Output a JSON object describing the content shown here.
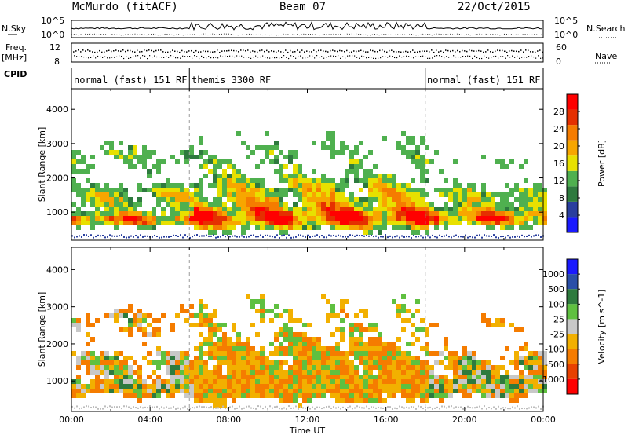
{
  "header": {
    "station": "McMurdo (fitACF)",
    "beam": "Beam 07",
    "date": "22/Oct/2015"
  },
  "strip_labels": {
    "nsky": "N.Sky",
    "freq": "Freq.",
    "freq_unit": "[MHz]",
    "cpid": "CPID",
    "nsearch": "N.Search",
    "nave": "Nave",
    "noise_tick_top": "10^5",
    "noise_tick_bottom": "10^0",
    "freq_tick_top": "12",
    "freq_tick_bottom": "8",
    "nave_tick_top": "60",
    "nave_tick_bottom": "0"
  },
  "cpid_segments": [
    {
      "label": "normal (fast) 151 RF",
      "start_hour": 0,
      "end_hour": 6
    },
    {
      "label": "themis 3300 RF",
      "start_hour": 6,
      "end_hour": 18
    },
    {
      "label": "normal (fast) 151 RF",
      "start_hour": 18,
      "end_hour": 24
    }
  ],
  "chart_data": [
    {
      "type": "heatmap",
      "ylabel": "Slant Range [km]",
      "yticks": [
        1000,
        2000,
        3000,
        4000
      ],
      "ylim": [
        180,
        4600
      ],
      "xlim": [
        0,
        24
      ],
      "colorbar": {
        "label": "Power [dB]",
        "ticks": [
          4,
          8,
          12,
          16,
          20,
          24,
          28
        ],
        "range": [
          0,
          32
        ],
        "colors": [
          "#1a1aff",
          "#2a3f9e",
          "#2e7a3e",
          "#4fb04f",
          "#e8e000",
          "#f7a600",
          "#f57c00",
          "#e53000",
          "#ff0000"
        ]
      }
    },
    {
      "type": "heatmap",
      "ylabel": "Slant Range [km]",
      "xlabel": "Time UT",
      "yticks": [
        1000,
        2000,
        3000,
        4000
      ],
      "xticks": [
        "00:00",
        "04:00",
        "08:00",
        "12:00",
        "16:00",
        "20:00",
        "00:00"
      ],
      "ylim": [
        180,
        4600
      ],
      "xlim": [
        0,
        24
      ],
      "colorbar": {
        "label": "Velocity [m s^-1]",
        "ticks": [
          "1000",
          "500",
          "100",
          "25",
          "-25",
          "-100",
          "-500",
          "-1000"
        ],
        "colors": [
          "#1a1aff",
          "#2a4fa8",
          "#2e7a3e",
          "#5fc040",
          "#c8c8c8",
          "#f2b000",
          "#f57c00",
          "#e84000",
          "#ff0000"
        ]
      }
    }
  ]
}
